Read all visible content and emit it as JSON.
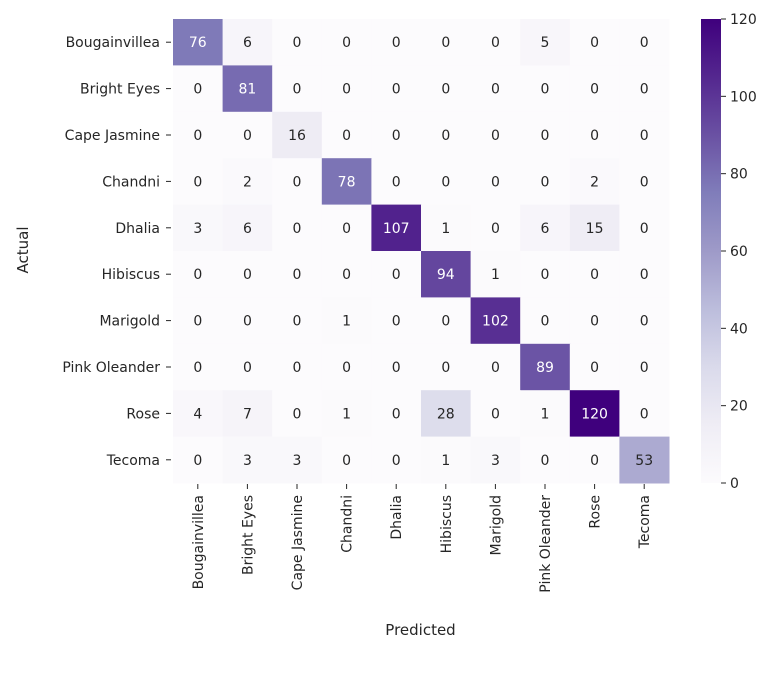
{
  "chart_data": {
    "type": "heatmap",
    "title": "",
    "xlabel": "Predicted",
    "ylabel": "Actual",
    "x_categories": [
      "Bougainvillea",
      "Bright Eyes",
      "Cape Jasmine",
      "Chandni",
      "Dhalia",
      "Hibiscus",
      "Marigold",
      "Pink Oleander",
      "Rose",
      "Tecoma"
    ],
    "y_categories": [
      "Bougainvillea",
      "Bright Eyes",
      "Cape Jasmine",
      "Chandni",
      "Dhalia",
      "Hibiscus",
      "Marigold",
      "Pink Oleander",
      "Rose",
      "Tecoma"
    ],
    "values": [
      [
        76,
        6,
        0,
        0,
        0,
        0,
        0,
        5,
        0,
        0
      ],
      [
        0,
        81,
        0,
        0,
        0,
        0,
        0,
        0,
        0,
        0
      ],
      [
        0,
        0,
        16,
        0,
        0,
        0,
        0,
        0,
        0,
        0
      ],
      [
        0,
        2,
        0,
        78,
        0,
        0,
        0,
        0,
        2,
        0
      ],
      [
        3,
        6,
        0,
        0,
        107,
        1,
        0,
        6,
        15,
        0
      ],
      [
        0,
        0,
        0,
        0,
        0,
        94,
        1,
        0,
        0,
        0
      ],
      [
        0,
        0,
        0,
        1,
        0,
        0,
        102,
        0,
        0,
        0
      ],
      [
        0,
        0,
        0,
        0,
        0,
        0,
        0,
        89,
        0,
        0
      ],
      [
        4,
        7,
        0,
        1,
        0,
        28,
        0,
        1,
        120,
        0
      ],
      [
        0,
        3,
        3,
        0,
        0,
        1,
        3,
        0,
        0,
        53
      ]
    ],
    "colorbar": {
      "range": [
        0,
        120
      ],
      "ticks": [
        0,
        20,
        40,
        60,
        80,
        100,
        120
      ],
      "colormap": "Purples",
      "stops": [
        "#fcfbfd",
        "#efedf5",
        "#dadaeb",
        "#bcbddc",
        "#9e9ac8",
        "#807dba",
        "#6a51a3",
        "#54278f",
        "#3f007d"
      ]
    },
    "grid": false
  }
}
